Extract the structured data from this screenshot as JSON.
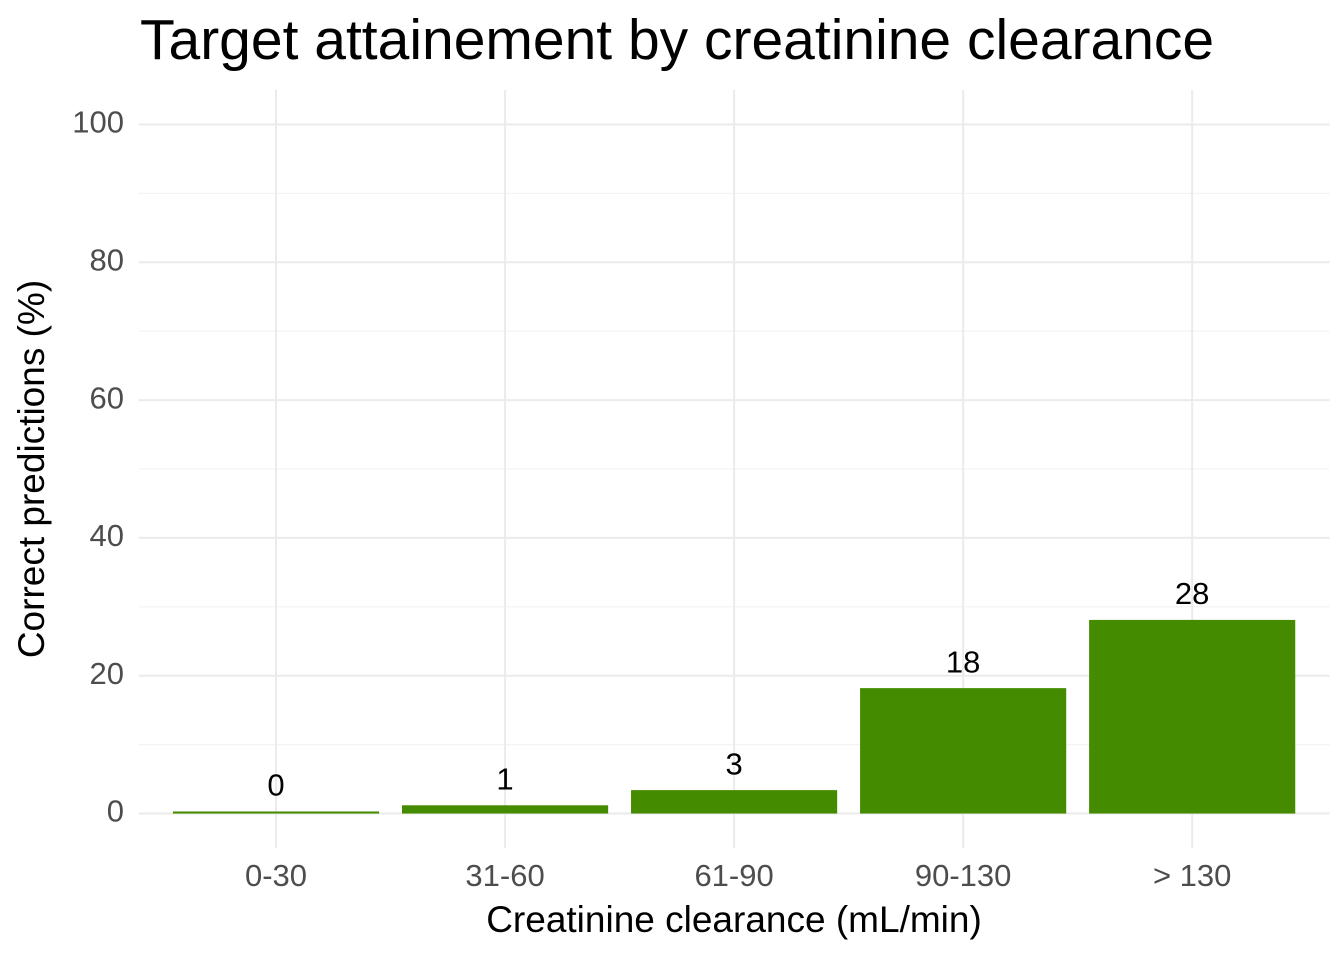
{
  "chart_data": {
    "type": "bar",
    "title": "Target attainement by creatinine clearance",
    "x_label": "Creatinine clearance (mL/min)",
    "y_label": "Correct predictions (%)",
    "categories": [
      "0-30",
      "31-60",
      "61-90",
      "90-130",
      "> 130"
    ],
    "values": [
      0.3,
      1.2,
      3.4,
      18.2,
      28.1
    ],
    "value_labels": [
      "0",
      "1",
      "3",
      "18",
      "28"
    ],
    "color": "#458b00",
    "ylim": [
      -5,
      105
    ],
    "yticks": [
      0,
      20,
      40,
      60,
      80,
      100
    ],
    "minor_yticks": [
      10,
      30,
      50,
      70,
      90
    ],
    "grid": true
  }
}
